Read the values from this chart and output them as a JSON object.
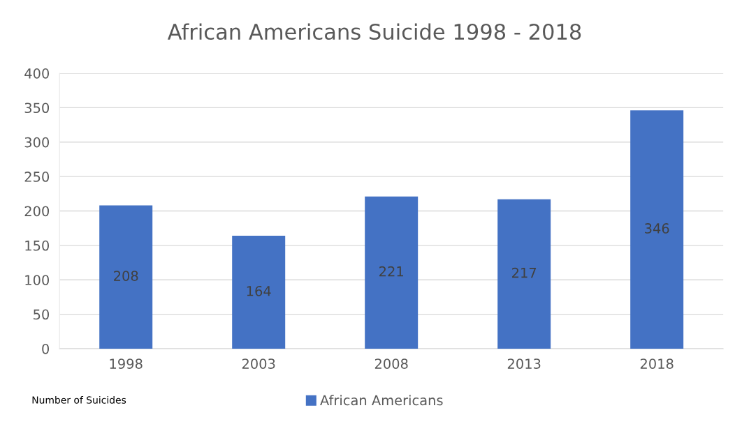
{
  "chart_data": {
    "type": "bar",
    "title": "African Americans Suicide 1998 - 2018",
    "categories": [
      "1998",
      "2003",
      "2008",
      "2013",
      "2018"
    ],
    "series": [
      {
        "name": "African Americans",
        "color": "#4472c4",
        "values": [
          208,
          164,
          221,
          217,
          346
        ]
      }
    ],
    "ylim": [
      0,
      400
    ],
    "yticks": [
      0,
      50,
      100,
      150,
      200,
      250,
      300,
      350,
      400
    ],
    "grid": "y",
    "legend": "bottom",
    "data_labels": true,
    "annotations": [
      "Number of Suicides"
    ]
  }
}
